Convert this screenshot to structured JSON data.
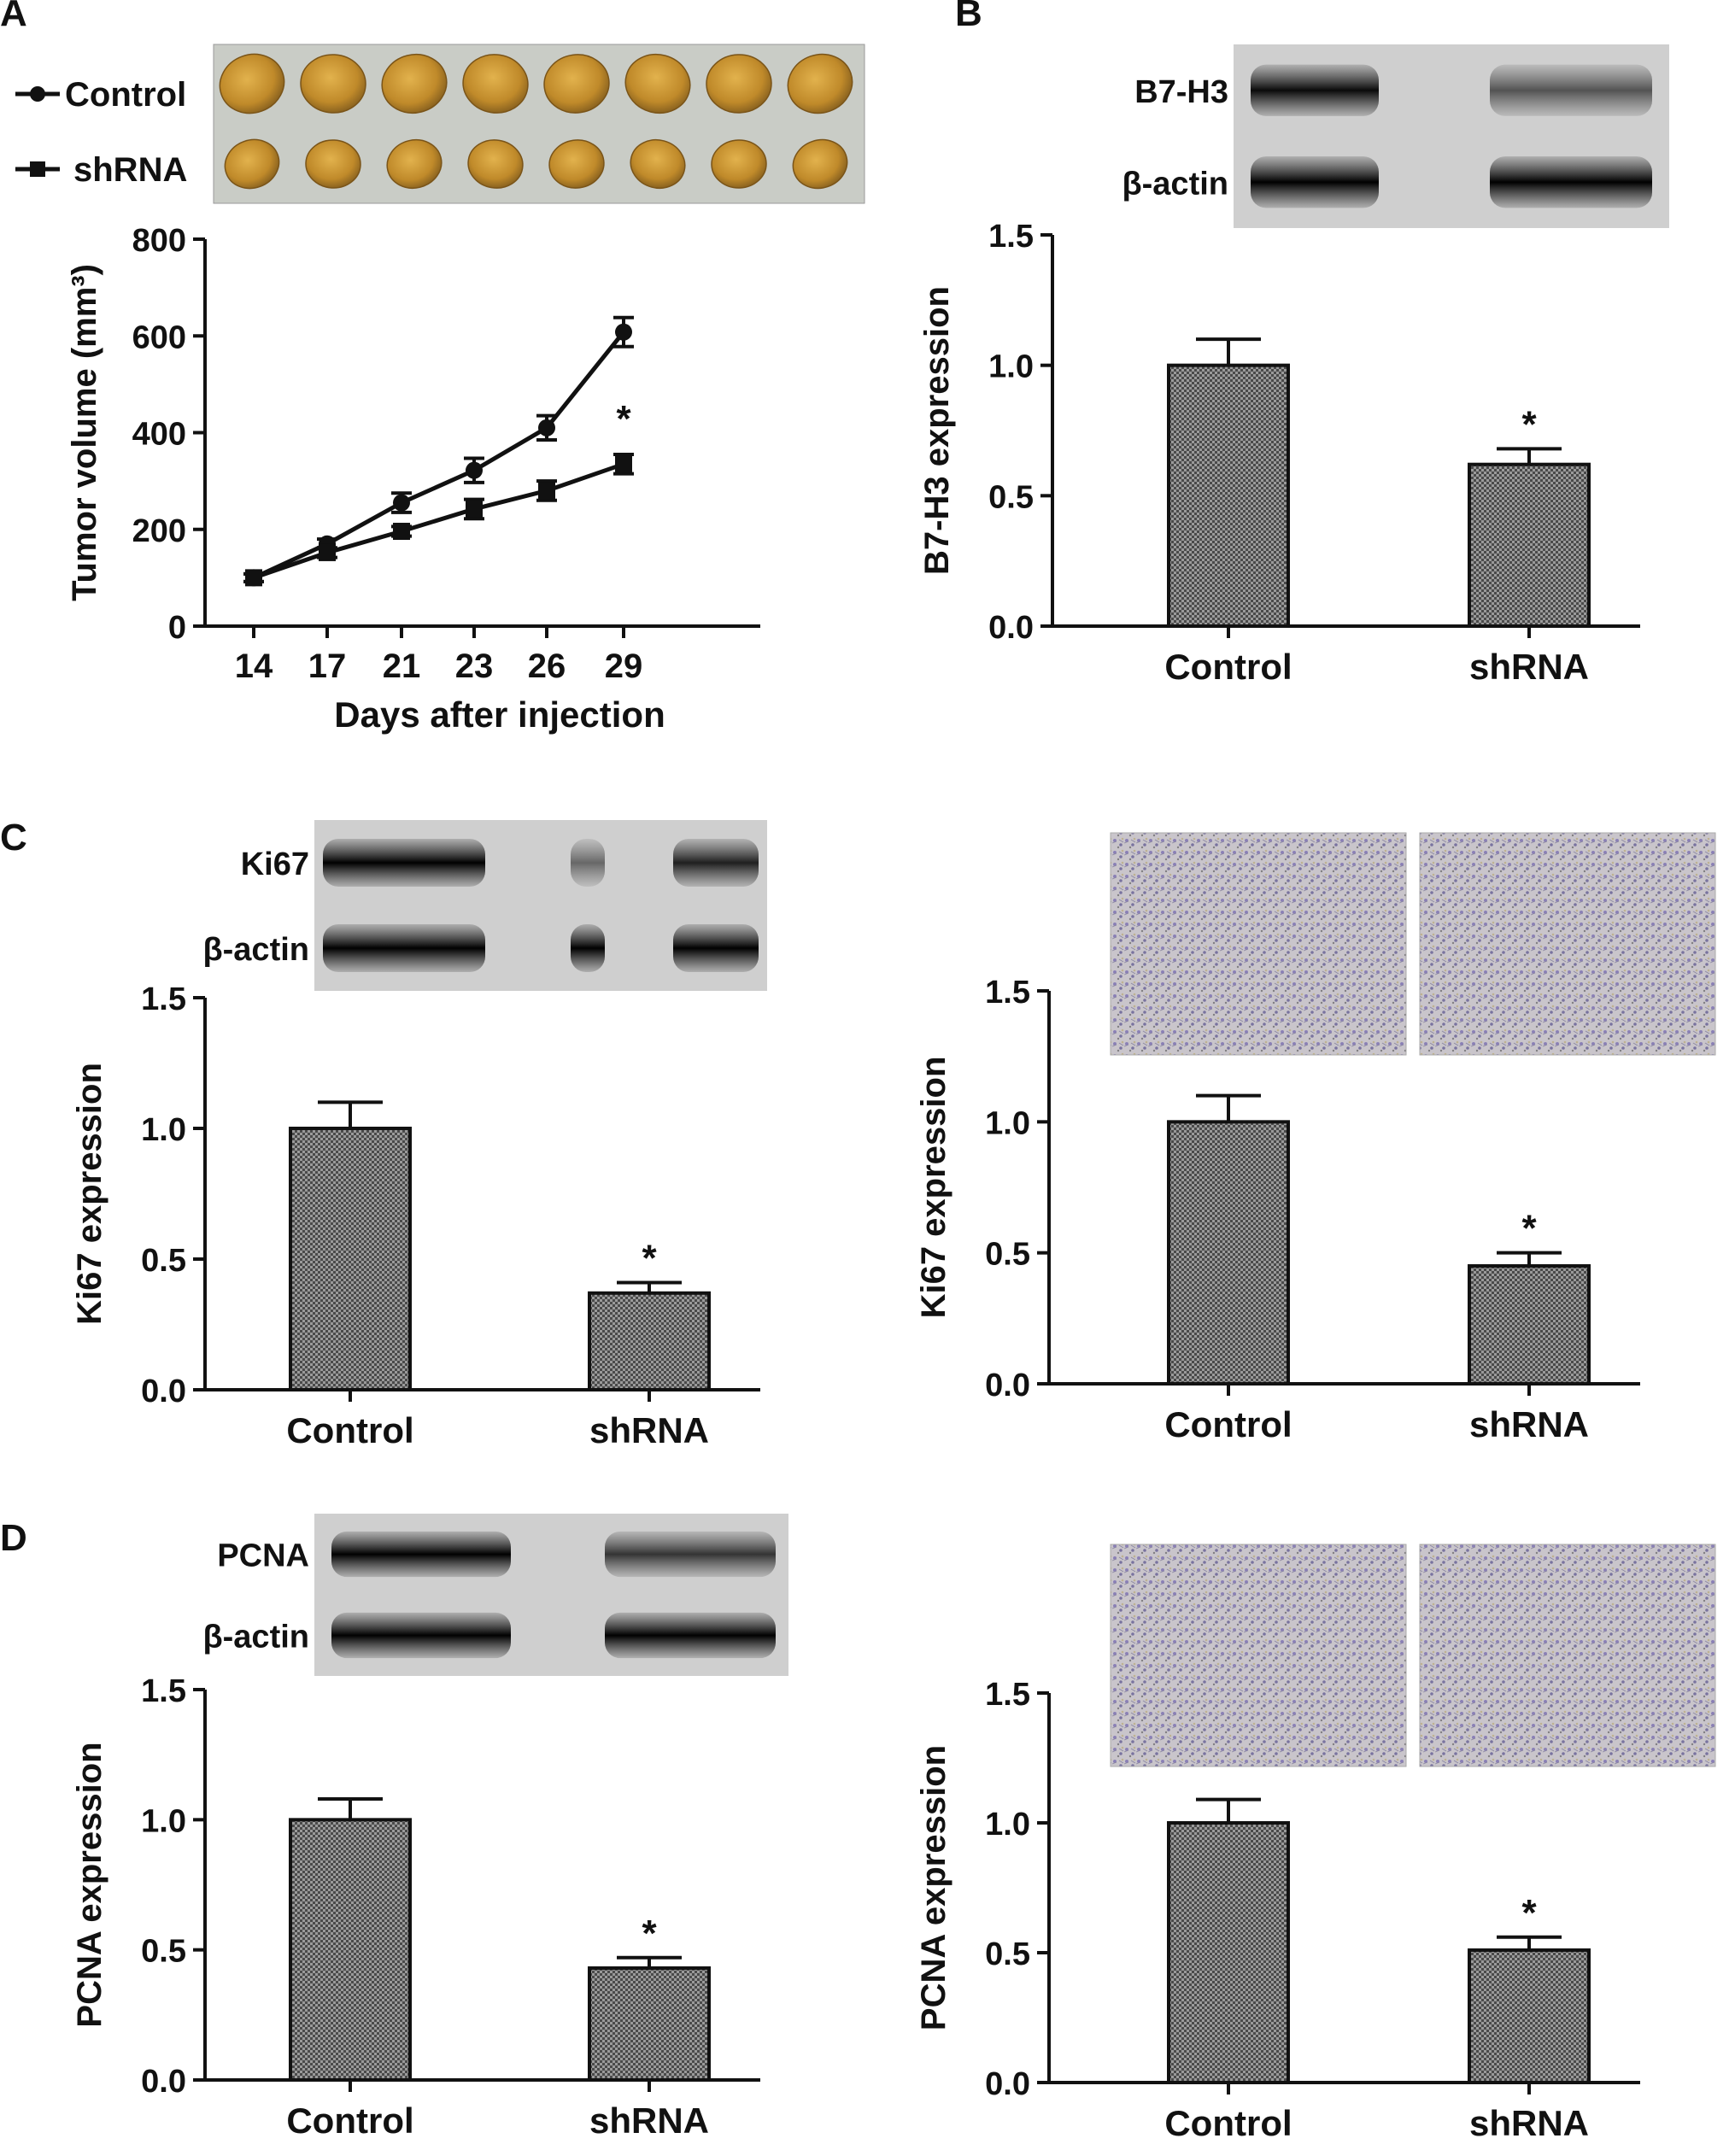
{
  "panels": {
    "A": "A",
    "B": "B",
    "C": "C",
    "D": "D"
  },
  "colors": {
    "ink": "#111111",
    "bar_fill": "#8a8a8a",
    "tumor_tray": "#c9ccc6",
    "tumor_tissue": "#c9942f",
    "blot_background": "#cfcfcf",
    "ihc_background": "#c7c3c8",
    "ihc_stain": "#7a6fb0"
  },
  "chart_data": [
    {
      "id": "A",
      "type": "line",
      "title": "",
      "xlabel": "Days after injection",
      "ylabel": "Tumor volume (mm³)",
      "x": [
        14,
        17,
        21,
        23,
        26,
        29
      ],
      "ylim": [
        0,
        800
      ],
      "yticks": [
        "0",
        "200",
        "400",
        "600",
        "800"
      ],
      "series": [
        {
          "name": "Control",
          "marker": "circle",
          "values": [
            100,
            170,
            255,
            322,
            410,
            608
          ],
          "errors": [
            8,
            10,
            20,
            25,
            25,
            30
          ]
        },
        {
          "name": "shRNA",
          "marker": "square",
          "values": [
            100,
            152,
            196,
            242,
            280,
            335
          ],
          "errors": [
            8,
            10,
            10,
            20,
            20,
            20
          ]
        }
      ],
      "annotations": [
        {
          "text": "*",
          "x": 29
        }
      ],
      "legend": "top-left",
      "image_inset": {
        "kind": "tumor photograph",
        "rows": [
          "Control",
          "shRNA"
        ],
        "count_per_row": 8
      }
    },
    {
      "id": "B",
      "type": "bar",
      "categories": [
        "Control",
        "shRNA"
      ],
      "values": [
        1.0,
        0.62
      ],
      "errors": [
        0.1,
        0.06
      ],
      "ylabel": "B7-H3 expression",
      "ylim": [
        0,
        1.5
      ],
      "yticks": [
        "0.0",
        "0.5",
        "1.0",
        "1.5"
      ],
      "annotations": [
        {
          "text": "*",
          "category": "shRNA"
        }
      ],
      "blot": {
        "labels": [
          "B7-H3",
          "β-actin"
        ]
      }
    },
    {
      "id": "C-left",
      "type": "bar",
      "categories": [
        "Control",
        "shRNA"
      ],
      "values": [
        1.0,
        0.37
      ],
      "errors": [
        0.1,
        0.04
      ],
      "ylabel": "Ki67 expression",
      "ylim": [
        0,
        1.5
      ],
      "yticks": [
        "0.0",
        "0.5",
        "1.0",
        "1.5"
      ],
      "annotations": [
        {
          "text": "*",
          "category": "shRNA"
        }
      ],
      "blot": {
        "labels": [
          "Ki67",
          "β-actin"
        ]
      }
    },
    {
      "id": "C-right",
      "type": "bar",
      "categories": [
        "Control",
        "shRNA"
      ],
      "values": [
        1.0,
        0.45
      ],
      "errors": [
        0.1,
        0.05
      ],
      "ylabel": "Ki67 expression",
      "ylim": [
        0,
        1.5
      ],
      "yticks": [
        "0.0",
        "0.5",
        "1.0",
        "1.5"
      ],
      "annotations": [
        {
          "text": "*",
          "category": "shRNA"
        }
      ],
      "ihc_images": 2
    },
    {
      "id": "D-left",
      "type": "bar",
      "categories": [
        "Control",
        "shRNA"
      ],
      "values": [
        1.0,
        0.43
      ],
      "errors": [
        0.08,
        0.04
      ],
      "ylabel": "PCNA expression",
      "ylim": [
        0,
        1.5
      ],
      "yticks": [
        "0.0",
        "0.5",
        "1.0",
        "1.5"
      ],
      "annotations": [
        {
          "text": "*",
          "category": "shRNA"
        }
      ],
      "blot": {
        "labels": [
          "PCNA",
          "β-actin"
        ]
      }
    },
    {
      "id": "D-right",
      "type": "bar",
      "categories": [
        "Control",
        "shRNA"
      ],
      "values": [
        1.0,
        0.51
      ],
      "errors": [
        0.09,
        0.05
      ],
      "ylabel": "PCNA expression",
      "ylim": [
        0,
        1.5
      ],
      "yticks": [
        "0.0",
        "0.5",
        "1.0",
        "1.5"
      ],
      "annotations": [
        {
          "text": "*",
          "category": "shRNA"
        }
      ],
      "ihc_images": 2
    }
  ]
}
